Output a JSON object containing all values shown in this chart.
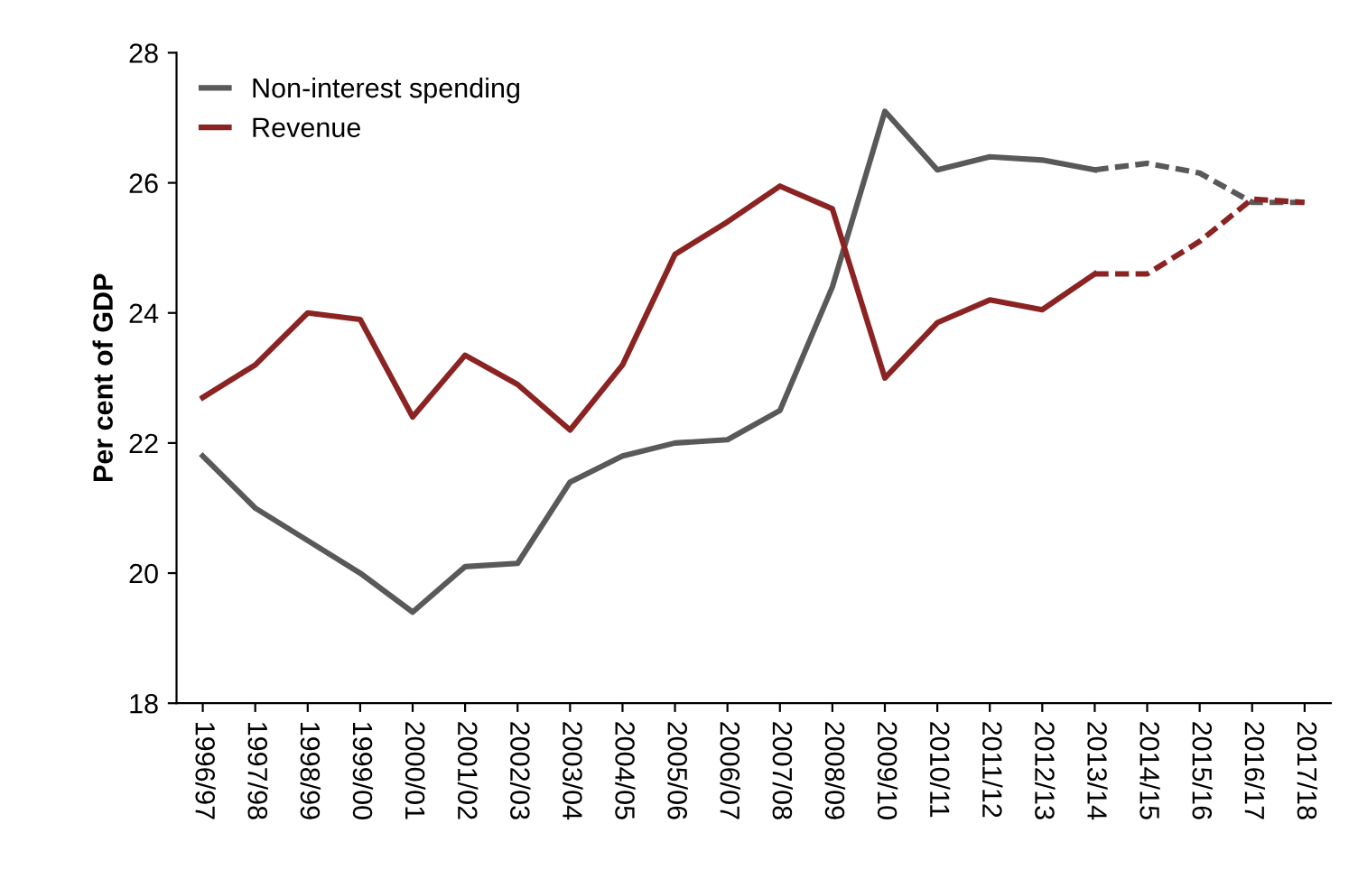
{
  "chart_data": {
    "type": "line",
    "ylabel": "Per cent of GDP",
    "categories": [
      "1996/97",
      "1997/98",
      "1998/99",
      "1999/00",
      "2000/01",
      "2001/02",
      "2002/03",
      "2003/04",
      "2004/05",
      "2005/06",
      "2006/07",
      "2007/08",
      "2008/09",
      "2009/10",
      "2010/11",
      "2011/12",
      "2012/13",
      "2013/14",
      "2014/15",
      "2015/16",
      "2016/17",
      "2017/18"
    ],
    "series": [
      {
        "name": "Non-interest spending",
        "color": "#595959",
        "line_style": "solid",
        "values": [
          21.8,
          21.0,
          20.5,
          20.0,
          19.4,
          20.1,
          20.15,
          21.4,
          21.8,
          22.0,
          22.05,
          22.5,
          24.4,
          27.1,
          26.2,
          26.4,
          26.35,
          26.2,
          null,
          null,
          null,
          null
        ]
      },
      {
        "name": "Revenue",
        "color": "#8b2323",
        "line_style": "solid",
        "values": [
          22.7,
          23.2,
          24.0,
          23.9,
          22.4,
          23.35,
          22.9,
          22.2,
          23.2,
          24.9,
          25.4,
          25.95,
          25.6,
          23.0,
          23.85,
          24.2,
          24.05,
          24.6,
          null,
          null,
          null,
          null
        ]
      },
      {
        "color": "#595959",
        "line_style": "dashed",
        "values": [
          null,
          null,
          null,
          null,
          null,
          null,
          null,
          null,
          null,
          null,
          null,
          null,
          null,
          null,
          null,
          null,
          null,
          26.2,
          26.3,
          26.15,
          25.7,
          25.7
        ]
      },
      {
        "color": "#8b2323",
        "line_style": "dashed",
        "values": [
          null,
          null,
          null,
          null,
          null,
          null,
          null,
          null,
          null,
          null,
          null,
          null,
          null,
          null,
          null,
          null,
          null,
          24.6,
          24.6,
          25.1,
          25.75,
          25.7
        ]
      }
    ],
    "ylim": [
      18,
      28
    ],
    "yticks": [
      18,
      20,
      22,
      24,
      26,
      28
    ],
    "grid": false,
    "legend": "top left",
    "marker": "none"
  }
}
